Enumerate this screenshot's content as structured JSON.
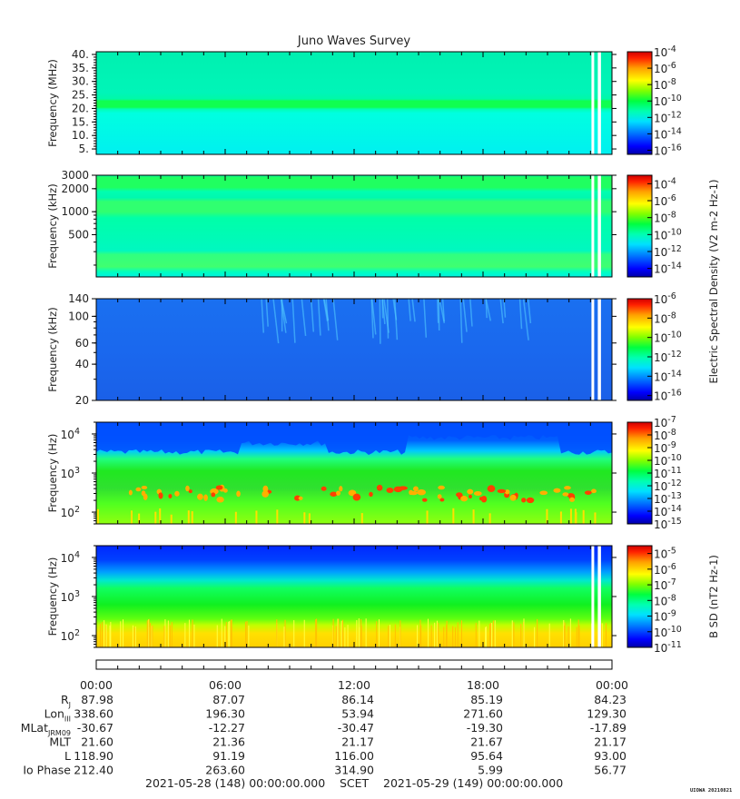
{
  "colors": {
    "scale": [
      "#0000a8",
      "#0000ff",
      "#0060ff",
      "#00c0ff",
      "#00ffd0",
      "#00ff60",
      "#60ff00",
      "#d0ff00",
      "#ffff00",
      "#ffc000",
      "#ff6000",
      "#ff0000",
      "#d00000"
    ]
  },
  "chart_data": {
    "type": "heatmap",
    "title": "Juno Waves Survey",
    "x_axis": {
      "tick_labels": [
        "00:00",
        "06:00",
        "12:00",
        "18:00",
        "00:00"
      ],
      "range": [
        "2021-05-28 00:00:00",
        "2021-05-29 00:00:00"
      ]
    },
    "data_gap_fraction_of_day": [
      0.9655,
      0.9725
    ],
    "panels": [
      {
        "id": "hfwbr",
        "ylabel": "Frequency (MHz)",
        "yscale": "linear",
        "ylim": [
          3,
          41
        ],
        "ytick_labels": [
          "40.",
          "35.",
          "30.",
          "25.",
          "20.",
          "15.",
          "10.",
          "5."
        ],
        "ytick_values": [
          40,
          35,
          30,
          25,
          20,
          15,
          10,
          5
        ],
        "colorbar_ticks": [
          -4,
          -6,
          -8,
          -10,
          -12,
          -14,
          -16
        ],
        "colorbar_range": [
          -16.5,
          -4
        ]
      },
      {
        "id": "hfr",
        "ylabel": "Frequency (kHz)",
        "yscale": "log",
        "ylim": [
          140,
          3000
        ],
        "ytick_labels": [
          "3000",
          "2000",
          "1000",
          "500"
        ],
        "ytick_values": [
          3000,
          2000,
          1000,
          500
        ],
        "colorbar_ticks": [
          -4,
          -6,
          -8,
          -10,
          -12,
          -14
        ],
        "colorbar_range": [
          -15,
          -3
        ],
        "colorbar_label": "Electric Spectral Density (V^2 m^-2 Hz^-1)"
      },
      {
        "id": "lfr",
        "ylabel": "Frequency (kHz)",
        "yscale": "log",
        "ylim": [
          20,
          140
        ],
        "ytick_labels": [
          "140",
          "100",
          "60",
          "40",
          "20"
        ],
        "ytick_values": [
          140,
          100,
          60,
          40,
          20
        ],
        "colorbar_ticks": [
          -6,
          -8,
          -10,
          -12,
          -14,
          -16
        ],
        "colorbar_range": [
          -16.5,
          -6
        ]
      },
      {
        "id": "lfre",
        "ylabel": "Frequency (Hz)",
        "yscale": "log",
        "ylim": [
          50,
          20000
        ],
        "ytick_labels": [
          "10^4",
          "10^3",
          "10^2"
        ],
        "ytick_values": [
          10000,
          1000,
          100
        ],
        "colorbar_ticks": [
          -7,
          -8,
          -9,
          -10,
          -11,
          -12,
          -13,
          -14,
          -15
        ],
        "colorbar_range": [
          -15,
          -7
        ]
      },
      {
        "id": "lfrb",
        "ylabel": "Frequency (Hz)",
        "yscale": "log",
        "ylim": [
          50,
          20000
        ],
        "ytick_labels": [
          "10^4",
          "10^3",
          "10^2"
        ],
        "ytick_values": [
          10000,
          1000,
          100
        ],
        "colorbar_ticks": [
          -5,
          -6,
          -7,
          -8,
          -9,
          -10,
          -11
        ],
        "colorbar_range": [
          -11,
          -4.5
        ],
        "colorbar_label": "B SD (nT^2 Hz^-1)"
      }
    ],
    "ephemeris": {
      "rows": [
        {
          "label": "R",
          "sub": "J",
          "values": [
            "87.98",
            "87.07",
            "86.14",
            "85.19",
            "84.23"
          ]
        },
        {
          "label": "Lon",
          "sub": "III",
          "values": [
            "338.60",
            "196.30",
            "53.94",
            "271.60",
            "129.30"
          ]
        },
        {
          "label": "MLat",
          "sub": "JRM09",
          "values": [
            "-30.67",
            "-12.27",
            "-30.47",
            "-19.30",
            "-17.89"
          ]
        },
        {
          "label": "MLT",
          "sub": "",
          "values": [
            "21.60",
            "21.36",
            "21.17",
            "21.67",
            "21.17"
          ]
        },
        {
          "label": "L",
          "sub": "",
          "values": [
            "118.90",
            "91.19",
            "116.00",
            "95.64",
            "93.00"
          ]
        },
        {
          "label": "Io Phase",
          "sub": "",
          "values": [
            "212.40",
            "263.60",
            "314.90",
            "5.99",
            "56.77"
          ]
        }
      ]
    }
  },
  "footer": {
    "start": "2021-05-28 (148) 00:00:00.000",
    "middle": "SCET",
    "end": "2021-05-29 (149) 00:00:00.000",
    "stamp": "UIOWA 20210821"
  }
}
